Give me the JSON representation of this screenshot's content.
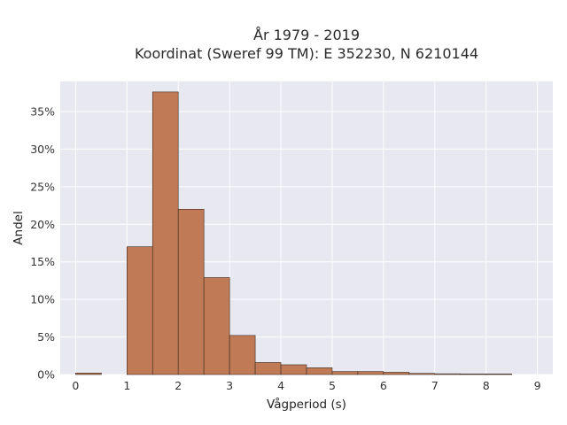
{
  "chart_data": {
    "type": "bar",
    "title_line1": "År 1979 - 2019",
    "title_line2": "Koordinat (Sweref 99 TM): E 352230, N 6210144",
    "xlabel": "Vågperiod (s)",
    "ylabel": "Andel",
    "x_ticks": [
      "0",
      "1",
      "2",
      "3",
      "4",
      "5",
      "6",
      "7",
      "8",
      "9"
    ],
    "y_ticks": [
      "0%",
      "5%",
      "10%",
      "15%",
      "20%",
      "25%",
      "30%",
      "35%"
    ],
    "xlim": [
      -0.3,
      9.3
    ],
    "ylim": [
      0,
      0.39
    ],
    "bin_width": 0.5,
    "bins": [
      {
        "x0": 0.0,
        "value": 0.002
      },
      {
        "x0": 1.0,
        "value": 0.17
      },
      {
        "x0": 1.5,
        "value": 0.376
      },
      {
        "x0": 2.0,
        "value": 0.22
      },
      {
        "x0": 2.5,
        "value": 0.129
      },
      {
        "x0": 3.0,
        "value": 0.052
      },
      {
        "x0": 3.5,
        "value": 0.016
      },
      {
        "x0": 4.0,
        "value": 0.013
      },
      {
        "x0": 4.5,
        "value": 0.009
      },
      {
        "x0": 5.0,
        "value": 0.004
      },
      {
        "x0": 5.5,
        "value": 0.004
      },
      {
        "x0": 6.0,
        "value": 0.003
      },
      {
        "x0": 6.5,
        "value": 0.0015
      },
      {
        "x0": 7.0,
        "value": 0.001
      },
      {
        "x0": 7.5,
        "value": 0.0008
      },
      {
        "x0": 8.0,
        "value": 0.0008
      }
    ],
    "grid": true,
    "colors": {
      "bar": "#c07a55",
      "bar_edge": "#3a2a20",
      "plot_bg": "#e8e8f0",
      "grid": "#ffffff"
    }
  }
}
